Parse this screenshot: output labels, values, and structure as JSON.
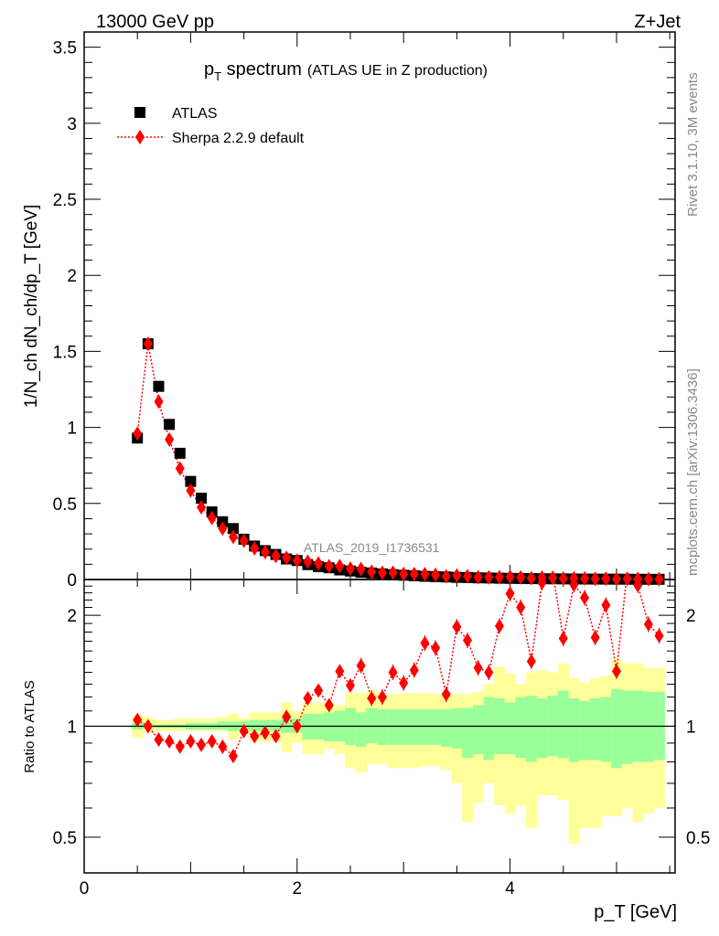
{
  "header": {
    "left": "13000 GeV pp",
    "right": "Z+Jet"
  },
  "side_text": {
    "rivet": "Rivet 3.1.10,  3M events",
    "mcplots": "mcplots.cern.ch [arXiv:1306.3436]"
  },
  "watermark": "ATLAS_2019_I1736531",
  "chart_data": [
    {
      "type": "scatter",
      "title_main": "p",
      "title_sub": "T",
      "title_rest": " spectrum",
      "title_note": "(ATLAS UE in Z production)",
      "ylabel": "1/N_ch dN_ch/dp_T [GeV]",
      "xlim": [
        0,
        5.55
      ],
      "ylim": [
        0,
        3.6
      ],
      "yticks": [
        0,
        0.5,
        1,
        1.5,
        2,
        2.5,
        3,
        3.5
      ],
      "ytick_labels": [
        "0",
        "0.5",
        "1",
        "1.5",
        "2",
        "2.5",
        "3",
        "3.5"
      ],
      "legend": {
        "position": "top-left",
        "entries": [
          "ATLAS",
          "Sherpa 2.2.9 default"
        ]
      },
      "x": [
        0.5,
        0.6,
        0.7,
        0.8,
        0.9,
        1.0,
        1.1,
        1.2,
        1.3,
        1.4,
        1.5,
        1.6,
        1.7,
        1.8,
        1.9,
        2.0,
        2.1,
        2.2,
        2.3,
        2.4,
        2.5,
        2.6,
        2.7,
        2.8,
        2.9,
        3.0,
        3.1,
        3.2,
        3.3,
        3.4,
        3.5,
        3.6,
        3.7,
        3.8,
        3.9,
        4.0,
        4.1,
        4.2,
        4.3,
        4.4,
        4.5,
        4.6,
        4.7,
        4.8,
        4.9,
        5.0,
        5.1,
        5.2,
        5.3,
        5.4
      ],
      "series": [
        {
          "name": "ATLAS",
          "values": [
            0.93,
            1.55,
            1.27,
            1.02,
            0.83,
            0.645,
            0.535,
            0.445,
            0.38,
            0.335,
            0.265,
            0.22,
            0.19,
            0.165,
            0.135,
            0.125,
            0.098,
            0.085,
            0.077,
            0.063,
            0.056,
            0.047,
            0.043,
            0.037,
            0.032,
            0.028,
            0.025,
            0.021,
            0.019,
            0.017,
            0.014,
            0.013,
            0.011,
            0.01,
            0.0085,
            0.0075,
            0.0066,
            0.0058,
            0.0051,
            0.0045,
            0.004,
            0.0035,
            0.0031,
            0.0027,
            0.0024,
            0.0021,
            0.0019,
            0.0016,
            0.0014,
            0.0013
          ]
        },
        {
          "name": "Sherpa 2.2.9 default",
          "values": [
            0.96,
            1.55,
            1.17,
            0.92,
            0.73,
            0.585,
            0.475,
            0.405,
            0.335,
            0.28,
            0.255,
            0.205,
            0.18,
            0.155,
            0.143,
            0.125,
            0.117,
            0.106,
            0.088,
            0.089,
            0.072,
            0.069,
            0.051,
            0.044,
            0.045,
            0.037,
            0.036,
            0.035,
            0.031,
            0.021,
            0.026,
            0.022,
            0.016,
            0.014,
            0.016,
            0.017,
            0.014,
            0.0087,
            0.0125,
            0.012,
            0.0069,
            0.0085,
            0.0069,
            0.0047,
            0.0051,
            0.003,
            0.0051,
            0.0039,
            0.0026,
            0.0023
          ]
        }
      ]
    },
    {
      "type": "scatter",
      "ylabel": "Ratio to ATLAS",
      "xlabel": "p_T [GeV]",
      "xlim": [
        0,
        5.55
      ],
      "ylim": [
        0.4,
        2.5
      ],
      "yscale": "log",
      "yticks": [
        0.5,
        1,
        2
      ],
      "ytick_labels": [
        "0.5",
        "1",
        "2"
      ],
      "xticks": [
        0,
        2,
        4
      ],
      "xtick_labels": [
        "0",
        "2",
        "4"
      ],
      "ratio_sherpa": [
        1.04,
        1.0,
        0.92,
        0.91,
        0.88,
        0.91,
        0.89,
        0.91,
        0.88,
        0.83,
        0.97,
        0.94,
        0.96,
        0.94,
        1.06,
        1.0,
        1.19,
        1.25,
        1.14,
        1.41,
        1.29,
        1.46,
        1.19,
        1.2,
        1.4,
        1.31,
        1.42,
        1.68,
        1.63,
        1.22,
        1.86,
        1.71,
        1.44,
        1.4,
        1.87,
        2.29,
        2.1,
        1.5,
        2.45,
        2.7,
        1.73,
        2.42,
        2.23,
        1.74,
        2.13,
        1.41,
        2.7,
        2.41,
        1.89,
        1.76
      ],
      "band_total_up": [
        1.07,
        1.06,
        1.04,
        1.04,
        1.05,
        1.05,
        1.05,
        1.05,
        1.06,
        1.08,
        1.05,
        1.09,
        1.09,
        1.09,
        1.16,
        1.1,
        1.16,
        1.16,
        1.16,
        1.14,
        1.23,
        1.23,
        1.25,
        1.22,
        1.22,
        1.23,
        1.23,
        1.23,
        1.22,
        1.23,
        1.22,
        1.22,
        1.24,
        1.3,
        1.45,
        1.39,
        1.3,
        1.4,
        1.42,
        1.4,
        1.48,
        1.35,
        1.31,
        1.35,
        1.37,
        1.52,
        1.48,
        1.48,
        1.44,
        1.44
      ],
      "band_total_down": [
        0.93,
        0.96,
        0.97,
        0.97,
        0.97,
        0.97,
        0.97,
        0.97,
        0.97,
        0.92,
        0.96,
        0.91,
        0.91,
        0.91,
        0.85,
        0.9,
        0.84,
        0.84,
        0.87,
        0.84,
        0.77,
        0.75,
        0.79,
        0.79,
        0.77,
        0.77,
        0.77,
        0.78,
        0.78,
        0.76,
        0.7,
        0.55,
        0.62,
        0.7,
        0.61,
        0.58,
        0.61,
        0.53,
        0.65,
        0.65,
        0.63,
        0.48,
        0.53,
        0.53,
        0.57,
        0.57,
        0.6,
        0.55,
        0.58,
        0.6
      ],
      "band_stat_up": [
        1.02,
        1.02,
        1.01,
        1.01,
        1.01,
        1.02,
        1.02,
        1.02,
        1.03,
        1.03,
        1.03,
        1.04,
        1.04,
        1.04,
        1.05,
        1.05,
        1.08,
        1.08,
        1.09,
        1.1,
        1.12,
        1.09,
        1.12,
        1.11,
        1.11,
        1.11,
        1.11,
        1.11,
        1.11,
        1.11,
        1.12,
        1.12,
        1.14,
        1.2,
        1.19,
        1.16,
        1.2,
        1.21,
        1.19,
        1.21,
        1.25,
        1.19,
        1.17,
        1.19,
        1.2,
        1.26,
        1.25,
        1.25,
        1.24,
        1.24
      ],
      "band_stat_down": [
        0.98,
        0.99,
        0.99,
        0.99,
        0.99,
        0.98,
        0.98,
        0.98,
        0.98,
        0.97,
        0.98,
        0.97,
        0.97,
        0.97,
        0.96,
        0.96,
        0.92,
        0.92,
        0.91,
        0.91,
        0.89,
        0.88,
        0.9,
        0.89,
        0.89,
        0.89,
        0.89,
        0.89,
        0.89,
        0.88,
        0.87,
        0.82,
        0.84,
        0.81,
        0.84,
        0.84,
        0.82,
        0.8,
        0.82,
        0.83,
        0.82,
        0.8,
        0.81,
        0.81,
        0.8,
        0.77,
        0.79,
        0.8,
        0.8,
        0.81
      ]
    }
  ]
}
